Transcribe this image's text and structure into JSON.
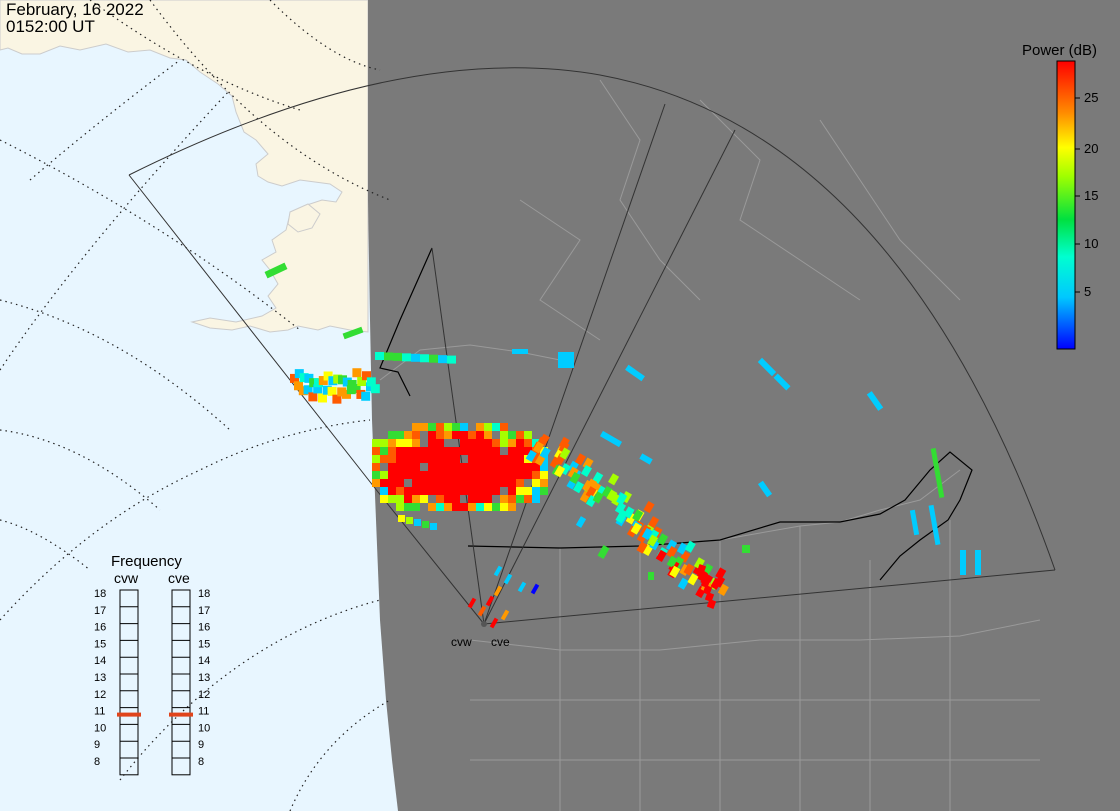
{
  "header": {
    "date": "February, 16 2022",
    "time": "0152:00 UT"
  },
  "colorbar": {
    "title": "Power (dB)",
    "ticks": [
      "25",
      "20",
      "15",
      "10",
      "5"
    ]
  },
  "frequency_panel": {
    "title": "Frequency",
    "columns": [
      {
        "label": "cvw",
        "selected": "11"
      },
      {
        "label": "cve",
        "selected": "11"
      }
    ],
    "levels": [
      "18",
      "17",
      "16",
      "15",
      "14",
      "13",
      "12",
      "11",
      "10",
      "9",
      "8"
    ]
  },
  "stations": [
    {
      "label": "cvw"
    },
    {
      "label": "cve"
    }
  ],
  "colors": {
    "ocean_day": "#e8f6ff",
    "land_day": "#faf5e3",
    "night": "#7a7a7a",
    "selected_freq": "#e0441b"
  }
}
